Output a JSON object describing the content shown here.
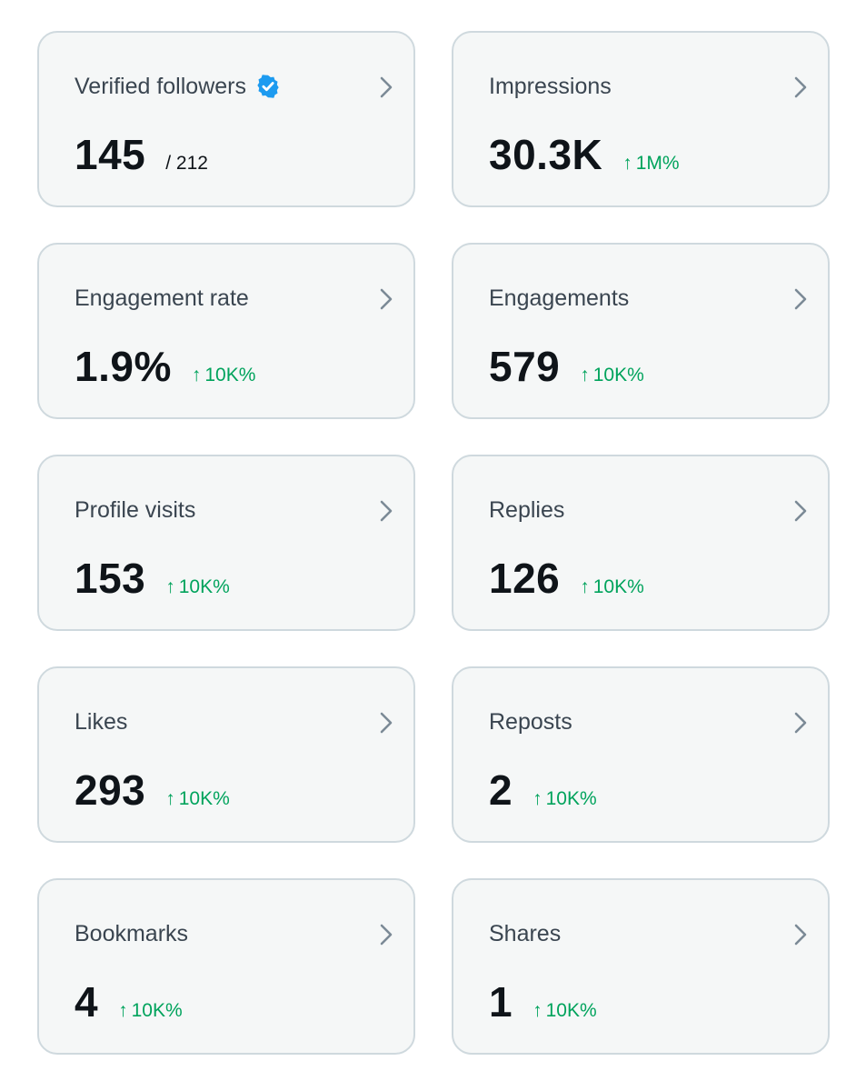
{
  "colors": {
    "card_background": "#f5f7f7",
    "card_border": "#cfd9de",
    "title_text": "#3a4550",
    "value_text": "#0f1419",
    "positive_change": "#00a35c",
    "verified_badge": "#1d9bf0",
    "chevron": "#7b8a96"
  },
  "icons": {
    "verified": "verified-badge-icon",
    "chevron": "chevron-right-icon",
    "arrow": "arrow-up-icon"
  },
  "cards": [
    {
      "title": "Verified followers",
      "value": "145",
      "total": "/ 212",
      "change_arrow": "",
      "change": ""
    },
    {
      "title": "Impressions",
      "value": "30.3K",
      "total": "",
      "change_arrow": "↑",
      "change": "1M%"
    },
    {
      "title": "Engagement rate",
      "value": "1.9%",
      "total": "",
      "change_arrow": "↑",
      "change": "10K%"
    },
    {
      "title": "Engagements",
      "value": "579",
      "total": "",
      "change_arrow": "↑",
      "change": "10K%"
    },
    {
      "title": "Profile visits",
      "value": "153",
      "total": "",
      "change_arrow": "↑",
      "change": "10K%"
    },
    {
      "title": "Replies",
      "value": "126",
      "total": "",
      "change_arrow": "↑",
      "change": "10K%"
    },
    {
      "title": "Likes",
      "value": "293",
      "total": "",
      "change_arrow": "↑",
      "change": "10K%"
    },
    {
      "title": "Reposts",
      "value": "2",
      "total": "",
      "change_arrow": "↑",
      "change": "10K%"
    },
    {
      "title": "Bookmarks",
      "value": "4",
      "total": "",
      "change_arrow": "↑",
      "change": "10K%"
    },
    {
      "title": "Shares",
      "value": "1",
      "total": "",
      "change_arrow": "↑",
      "change": "10K%"
    }
  ]
}
